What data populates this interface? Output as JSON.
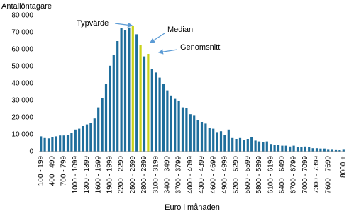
{
  "chart_data": {
    "type": "bar",
    "y_axis_label": "Antallöntagare",
    "x_axis_label": "Euro i månaden",
    "annotations": [
      "Typvärde",
      "Median",
      "Genomsnitt"
    ],
    "categories": [
      "100 - 199",
      null,
      null,
      "400 - 499",
      null,
      null,
      "700 - 799",
      null,
      null,
      "1000 - 1099",
      null,
      null,
      "1300 - 1399",
      null,
      null,
      "1600 - 1699",
      null,
      null,
      "1900 - 1999",
      null,
      null,
      "2200 - 2299",
      null,
      null,
      "2500 - 2599",
      null,
      null,
      "2800 - 2899",
      null,
      null,
      "3100 - 3199",
      null,
      null,
      "3400 - 3499",
      null,
      null,
      "3700 - 3799",
      null,
      null,
      "4000 - 4099",
      null,
      null,
      "4300 - 4399",
      null,
      null,
      "4600 - 4699",
      null,
      null,
      "4900 - 4999",
      null,
      null,
      "5200 - 5299",
      null,
      null,
      "5500 - 5599",
      null,
      null,
      "5800 - 5899",
      null,
      null,
      "6100 - 6199",
      null,
      null,
      "6400 - 6499",
      null,
      null,
      "6700 - 6799",
      null,
      null,
      "7000 - 7099",
      null,
      null,
      "7300 - 7399",
      null,
      null,
      "7600 - 7699",
      null,
      null,
      null,
      "8000 +"
    ],
    "values": [
      9000,
      8000,
      7800,
      8500,
      9000,
      9500,
      9500,
      10000,
      11000,
      13000,
      13500,
      15000,
      16000,
      17000,
      19500,
      26000,
      31500,
      40000,
      50500,
      57000,
      65000,
      72500,
      71500,
      73000,
      74000,
      69000,
      62500,
      56000,
      57500,
      48500,
      46500,
      43500,
      40000,
      36000,
      33000,
      31000,
      30000,
      26000,
      25500,
      22000,
      21500,
      18500,
      17500,
      16500,
      14000,
      13500,
      11500,
      12000,
      10000,
      13000,
      8000,
      7500,
      8000,
      7000,
      7500,
      8500,
      6500,
      6000,
      5500,
      6000,
      4500,
      4000,
      4000,
      3500,
      3500,
      3000,
      3500,
      2500,
      2500,
      3000,
      2500,
      2000,
      2000,
      1800,
      1800,
      1500,
      1500,
      1300,
      1200,
      1500
    ],
    "colors": [
      "#1f6e9c",
      "#1f6e9c",
      "#1f6e9c",
      "#1f6e9c",
      "#1f6e9c",
      "#1f6e9c",
      "#1f6e9c",
      "#1f6e9c",
      "#1f6e9c",
      "#1f6e9c",
      "#1f6e9c",
      "#1f6e9c",
      "#1f6e9c",
      "#1f6e9c",
      "#1f6e9c",
      "#1f6e9c",
      "#1f6e9c",
      "#1f6e9c",
      "#1f6e9c",
      "#1f6e9c",
      "#1f6e9c",
      "#1f6e9c",
      "#1f6e9c",
      "#1f6e9c",
      "#c9d21a",
      "#1f6e9c",
      "#c9d21a",
      "#1f6e9c",
      "#c9d21a",
      "#1f6e9c",
      "#1f6e9c",
      "#1f6e9c",
      "#1f6e9c",
      "#1f6e9c",
      "#1f6e9c",
      "#1f6e9c",
      "#1f6e9c",
      "#1f6e9c",
      "#1f6e9c",
      "#1f6e9c",
      "#1f6e9c",
      "#1f6e9c",
      "#1f6e9c",
      "#1f6e9c",
      "#1f6e9c",
      "#1f6e9c",
      "#1f6e9c",
      "#1f6e9c",
      "#1f6e9c",
      "#1f6e9c",
      "#1f6e9c",
      "#1f6e9c",
      "#1f6e9c",
      "#1f6e9c",
      "#1f6e9c",
      "#1f6e9c",
      "#1f6e9c",
      "#1f6e9c",
      "#1f6e9c",
      "#1f6e9c",
      "#1f6e9c",
      "#1f6e9c",
      "#1f6e9c",
      "#1f6e9c",
      "#1f6e9c",
      "#1f6e9c",
      "#1f6e9c",
      "#1f6e9c",
      "#1f6e9c",
      "#1f6e9c",
      "#1f6e9c",
      "#1f6e9c",
      "#1f6e9c",
      "#1f6e9c",
      "#1f6e9c",
      "#1f6e9c",
      "#1f6e9c",
      "#1f6e9c",
      "#1f6e9c",
      "#1f6e9c"
    ],
    "ylim": [
      0,
      80000
    ],
    "yticks": [
      0,
      {
        "value": 10000,
        "label": "10 000"
      },
      {
        "value": 20000,
        "label": "20 000"
      },
      {
        "value": 30000,
        "label": "30 000"
      },
      {
        "value": 40000,
        "label": "40 000"
      },
      {
        "value": 50000,
        "label": "50 000"
      },
      {
        "value": 60000,
        "label": "60 000"
      },
      {
        "value": 70000,
        "label": "70 000"
      },
      {
        "value": 80000,
        "label": "80 000"
      }
    ],
    "grid": false
  }
}
